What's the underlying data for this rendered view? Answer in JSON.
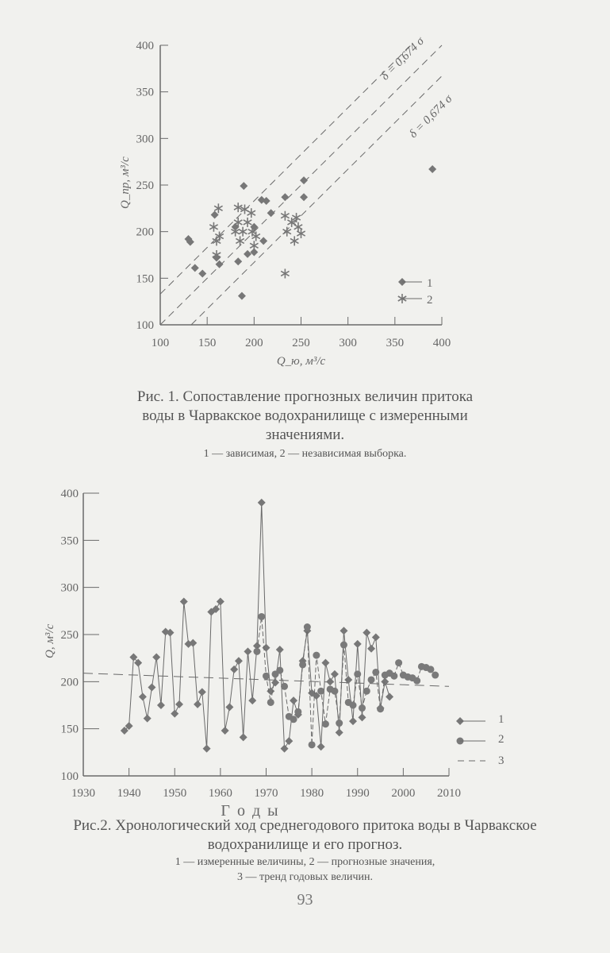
{
  "chart_data": [
    {
      "type": "scatter",
      "xlabel": "Q_ю, м³/с",
      "ylabel": "Q_пр, м³/с",
      "xlim": [
        100,
        400
      ],
      "ylim": [
        100,
        400
      ],
      "xticks": [
        100,
        150,
        200,
        250,
        300,
        350,
        400
      ],
      "yticks": [
        100,
        150,
        200,
        250,
        300,
        350,
        400
      ],
      "grid": false,
      "legend_placement": "bottom-right",
      "annotations": [
        "δ = 0,674 σ",
        "δ = 0,674 σ"
      ],
      "reference_lines": [
        {
          "style": "dashed",
          "intercept": 33,
          "slope": 1
        },
        {
          "style": "dashed",
          "intercept": 0,
          "slope": 1
        },
        {
          "style": "dashed",
          "intercept": -33,
          "slope": 1
        }
      ],
      "series": [
        {
          "name": "1",
          "marker": "diamond",
          "points": [
            [
              130,
              192
            ],
            [
              132,
              189
            ],
            [
              137,
              161
            ],
            [
              145,
              155
            ],
            [
              158,
              218
            ],
            [
              160,
              172
            ],
            [
              163,
              165
            ],
            [
              180,
              205
            ],
            [
              183,
              168
            ],
            [
              187,
              131
            ],
            [
              189,
              249
            ],
            [
              193,
              176
            ],
            [
              200,
              178
            ],
            [
              200,
              205
            ],
            [
              208,
              234
            ],
            [
              210,
              190
            ],
            [
              213,
              233
            ],
            [
              218,
              220
            ],
            [
              233,
              237
            ],
            [
              253,
              255
            ],
            [
              253,
              237
            ],
            [
              390,
              267
            ]
          ]
        },
        {
          "name": "2",
          "marker": "star",
          "points": [
            [
              157,
              205
            ],
            [
              160,
              190
            ],
            [
              160,
              175
            ],
            [
              162,
              225
            ],
            [
              163,
              195
            ],
            [
              180,
              200
            ],
            [
              183,
              226
            ],
            [
              183,
              210
            ],
            [
              185,
              190
            ],
            [
              188,
              200
            ],
            [
              190,
              224
            ],
            [
              193,
              210
            ],
            [
              197,
              220
            ],
            [
              198,
              200
            ],
            [
              200,
              185
            ],
            [
              202,
              195
            ],
            [
              233,
              217
            ],
            [
              233,
              155
            ],
            [
              235,
              200
            ],
            [
              240,
              210
            ],
            [
              243,
              190
            ],
            [
              245,
              215
            ],
            [
              247,
              205
            ],
            [
              250,
              198
            ]
          ]
        }
      ]
    },
    {
      "type": "line",
      "xlabel": "Г о д ы",
      "ylabel": "Q, м³/с",
      "xlim": [
        1930,
        2010
      ],
      "ylim": [
        100,
        400
      ],
      "xticks": [
        1930,
        1940,
        1950,
        1960,
        1970,
        1980,
        1990,
        2000,
        2010
      ],
      "yticks": [
        100,
        150,
        200,
        250,
        300,
        350,
        400
      ],
      "grid": false,
      "legend_placement": "bottom-right",
      "series": [
        {
          "name": "1",
          "marker": "diamond",
          "x": [
            1939,
            1940,
            1941,
            1942,
            1943,
            1944,
            1945,
            1946,
            1947,
            1948,
            1949,
            1950,
            1951,
            1952,
            1953,
            1954,
            1955,
            1956,
            1957,
            1958,
            1959,
            1960,
            1961,
            1962,
            1963,
            1964,
            1965,
            1966,
            1967,
            1968,
            1969,
            1970,
            1971,
            1972,
            1973,
            1974,
            1975,
            1976,
            1977,
            1978,
            1979,
            1980,
            1981,
            1982,
            1983,
            1984,
            1985,
            1986,
            1987,
            1988,
            1989,
            1990,
            1991,
            1992,
            1993,
            1994,
            1995,
            1996,
            1997
          ],
          "y": [
            148,
            153,
            226,
            220,
            184,
            161,
            194,
            226,
            175,
            253,
            252,
            166,
            176,
            285,
            240,
            241,
            176,
            189,
            129,
            274,
            277,
            285,
            148,
            173,
            213,
            222,
            141,
            232,
            180,
            238,
            390,
            236,
            190,
            199,
            234,
            129,
            137,
            180,
            165,
            222,
            254,
            188,
            185,
            131,
            220,
            200,
            208,
            146,
            254,
            202,
            158,
            240,
            162,
            252,
            235,
            247,
            172,
            200,
            184
          ]
        },
        {
          "name": "2",
          "marker": "circle",
          "x": [
            1968,
            1969,
            1970,
            1971,
            1972,
            1973,
            1974,
            1975,
            1976,
            1977,
            1978,
            1979,
            1980,
            1981,
            1982,
            1983,
            1984,
            1985,
            1986,
            1987,
            1988,
            1989,
            1990,
            1991,
            1992,
            1993,
            1994,
            1995,
            1996,
            1997,
            1998,
            1999,
            2000,
            2001,
            2002,
            2003,
            2004,
            2005,
            2006,
            2007
          ],
          "y": [
            232,
            269,
            206,
            178,
            208,
            212,
            195,
            163,
            160,
            168,
            218,
            258,
            133,
            228,
            190,
            155,
            192,
            190,
            156,
            239,
            178,
            175,
            208,
            172,
            190,
            202,
            210,
            171,
            207,
            209,
            206,
            220,
            207,
            205,
            204,
            201,
            216,
            215,
            213,
            207
          ]
        },
        {
          "name": "3",
          "style": "dashed",
          "x": [
            1930,
            2010
          ],
          "y": [
            209,
            195
          ]
        }
      ]
    }
  ],
  "captions": {
    "fig1_title": "Рис. 1. Сопоставление прогнозных величин притока воды в Чарвакское водохранилище с измеренными значениями.",
    "fig1_legend": "1 — зависимая, 2 — независимая выборка.",
    "fig2_title": "Рис.2. Хронологический ход среднегодового притока воды в Чарвакское водохранилище и его прогноз.",
    "fig2_legend_a": "1 — измеренные величины, 2 — прогнозные значения,",
    "fig2_legend_b": "3 — тренд годовых величин."
  },
  "page_number": "93"
}
